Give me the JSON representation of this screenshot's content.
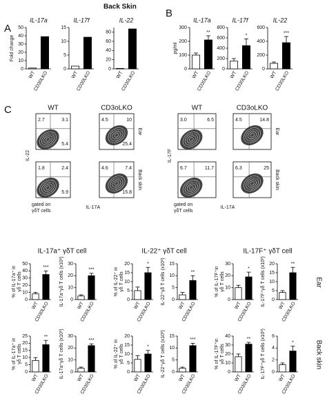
{
  "header": "Back Skin",
  "panels": [
    "A",
    "B",
    "C"
  ],
  "group_titles": [
    "IL-17a⁺ γδT cell",
    "IL-22⁺ γδT cell",
    "IL-17F⁺ γδT cell"
  ],
  "row_labels": [
    "Ear",
    "Back skin"
  ],
  "flow": [
    {
      "ylabel": "IL-22",
      "xlabel": "IL-17A",
      "columns": [
        "WT",
        "CD3oLKO"
      ],
      "rows": [
        "Ear",
        "Back skin"
      ],
      "gate": [
        "gated on",
        "γδT cells"
      ],
      "plots": [
        [
          {
            "UL": 2.7,
            "UR": 3.1,
            "LR": 5.4
          },
          {
            "UL": 4.5,
            "UR": 10,
            "LR": 25.4
          }
        ],
        [
          {
            "UL": 1.8,
            "UR": 2.4,
            "LR": 5.9
          },
          {
            "UL": 4.6,
            "UR": 7.4,
            "LR": 15.8
          }
        ]
      ]
    },
    {
      "ylabel": "IL-17F",
      "xlabel": "IL-17A",
      "columns": [
        "WT",
        "CD3oLKO"
      ],
      "rows": [
        "Ear",
        "Back skin"
      ],
      "gate": [
        "gated on",
        "γδT cells"
      ],
      "plots": [
        [
          {
            "UL": {
              "value": 3,
              "label": "3.0"
            },
            "UR": 6.5
          },
          {
            "UL": 4.5,
            "UR": 14.8
          }
        ],
        [
          {
            "UL": 6.7,
            "UR": 11.7
          },
          {
            "UL": 6.3,
            "UR": 25
          }
        ]
      ]
    }
  ],
  "chart_data": [
    {
      "type": "bar",
      "title": "IL-17a",
      "ylabel": [
        "Fold change"
      ],
      "categories": [
        "WT",
        "CD30LKO"
      ],
      "values": [
        1,
        39
      ],
      "colors": [
        "#ffffff",
        "#000000"
      ],
      "ylim": [
        0,
        50
      ],
      "yticks": [
        0,
        10,
        20,
        30,
        40,
        50
      ]
    },
    {
      "type": "bar",
      "title": "IL-17f",
      "categories": [
        "WT",
        "CD30LKO"
      ],
      "values": [
        1,
        11.5
      ],
      "colors": [
        "#ffffff",
        "#000000"
      ],
      "ylim": [
        0,
        15
      ],
      "yticks": [
        0,
        5,
        10,
        15
      ]
    },
    {
      "type": "bar",
      "title": "IL-22",
      "categories": [
        "WT",
        "CD30LKO"
      ],
      "values": [
        1,
        87
      ],
      "colors": [
        "#ffffff",
        "#000000"
      ],
      "ylim": [
        0,
        90
      ],
      "yticks": [
        0,
        20,
        40,
        60,
        80
      ]
    },
    {
      "type": "bar",
      "title": "IL-17a",
      "ylabel": [
        "pg/ml"
      ],
      "categories": [
        "WT",
        "CD30LKO"
      ],
      "values": [
        100,
        210
      ],
      "errors": [
        15,
        30
      ],
      "annotation": "**",
      "colors": [
        "#ffffff",
        "#000000"
      ],
      "ylim": [
        0,
        300
      ],
      "yticks": [
        0,
        100,
        200,
        300
      ]
    },
    {
      "type": "bar",
      "title": "IL-17f",
      "categories": [
        "WT",
        "CD30LKO"
      ],
      "values": [
        150,
        450
      ],
      "errors": [
        50,
        130
      ],
      "annotation": "*",
      "colors": [
        "#ffffff",
        "#000000"
      ],
      "ylim": [
        0,
        800
      ],
      "yticks": [
        0,
        200,
        400,
        600,
        800
      ]
    },
    {
      "type": "bar",
      "title": "IL-22",
      "categories": [
        "WT",
        "CD30LKO"
      ],
      "values": [
        80,
        380
      ],
      "errors": [
        20,
        90
      ],
      "annotation": "***",
      "colors": [
        "#ffffff",
        "#000000"
      ],
      "ylim": [
        0,
        600
      ],
      "yticks": [
        0,
        200,
        400,
        600
      ]
    },
    {
      "type": "bar",
      "ylabel": [
        "% of IL-17a⁺ in",
        "γδ T cells"
      ],
      "categories": [
        "WT",
        "CD30LKO"
      ],
      "values": [
        8,
        35
      ],
      "errors": [
        2,
        5
      ],
      "annotation": "***",
      "colors": [
        "#ffffff",
        "#000000"
      ],
      "ylim": [
        0,
        50
      ],
      "yticks": [
        0,
        10,
        20,
        30,
        40,
        50
      ]
    },
    {
      "type": "bar",
      "ylabel": [
        "IL-17a⁺γδ T cells (x10³)"
      ],
      "categories": [
        "WT",
        "CD30LKO"
      ],
      "values": [
        3,
        20
      ],
      "errors": [
        1,
        2
      ],
      "annotation": "***",
      "colors": [
        "#ffffff",
        "#000000"
      ],
      "ylim": [
        0,
        30
      ],
      "yticks": [
        0,
        10,
        20,
        30
      ]
    },
    {
      "type": "bar",
      "ylabel": [
        "% of IL-22⁺ in",
        "γδ T cells"
      ],
      "categories": [
        "WT",
        "CD30LKO"
      ],
      "values": [
        5,
        15
      ],
      "errors": [
        2,
        3
      ],
      "annotation": "*",
      "colors": [
        "#ffffff",
        "#000000"
      ],
      "ylim": [
        0,
        20
      ],
      "yticks": [
        0,
        5,
        10,
        15,
        20
      ]
    },
    {
      "type": "bar",
      "ylabel": [
        "IL-22⁺γδ T cells (x10³)"
      ],
      "categories": [
        "WT",
        "CD30LKO"
      ],
      "values": [
        2,
        8
      ],
      "errors": [
        1,
        2
      ],
      "annotation": "**",
      "colors": [
        "#ffffff",
        "#000000"
      ],
      "ylim": [
        0,
        15
      ],
      "yticks": [
        0,
        5,
        10,
        15
      ]
    },
    {
      "type": "bar",
      "ylabel": [
        "% of IL-17F⁺in",
        "γδ T cells"
      ],
      "categories": [
        "WT",
        "CD30LKO"
      ],
      "values": [
        10,
        19
      ],
      "errors": [
        2,
        4
      ],
      "annotation": "*",
      "colors": [
        "#ffffff",
        "#000000"
      ],
      "ylim": [
        0,
        30
      ],
      "yticks": [
        0,
        10,
        20,
        30
      ]
    },
    {
      "type": "bar",
      "ylabel": [
        "IL-17F⁺γδ T cells (x10³)"
      ],
      "categories": [
        "WT",
        "CD30LKO"
      ],
      "values": [
        4,
        15
      ],
      "errors": [
        1,
        3
      ],
      "annotation": "**",
      "colors": [
        "#ffffff",
        "#000000"
      ],
      "ylim": [
        0,
        20
      ],
      "yticks": [
        0,
        5,
        10,
        15,
        20
      ]
    },
    {
      "type": "bar",
      "ylabel": [
        "% of IL-17a⁺ in",
        "γδ T cells"
      ],
      "categories": [
        "WT",
        "CD30LKO"
      ],
      "values": [
        8,
        19
      ],
      "errors": [
        2,
        3
      ],
      "annotation": "**",
      "colors": [
        "#ffffff",
        "#000000"
      ],
      "ylim": [
        0,
        25
      ],
      "yticks": [
        0,
        5,
        10,
        15,
        20,
        25
      ]
    },
    {
      "type": "bar",
      "ylabel": [
        "IL-17a⁺γδ T cells (x10³)"
      ],
      "categories": [
        "WT",
        "CD30LKO"
      ],
      "values": [
        3,
        22
      ],
      "errors": [
        1,
        1.5
      ],
      "annotation": "***",
      "colors": [
        "#ffffff",
        "#000000"
      ],
      "ylim": [
        0,
        30
      ],
      "yticks": [
        0,
        10,
        20,
        30
      ]
    },
    {
      "type": "bar",
      "ylabel": [
        "% of IL-22⁺ in",
        "γδ T cells"
      ],
      "categories": [
        "WT",
        "CD30LKO"
      ],
      "values": [
        7,
        10
      ],
      "errors": [
        2,
        2
      ],
      "annotation": "*",
      "colors": [
        "#ffffff",
        "#000000"
      ],
      "ylim": [
        0,
        20
      ],
      "yticks": [
        0,
        5,
        10,
        15,
        20
      ]
    },
    {
      "type": "bar",
      "ylabel": [
        "IL-22⁺γδ T cells (x10³)"
      ],
      "categories": [
        "WT",
        "CD30LKO"
      ],
      "values": [
        1.5,
        11
      ],
      "errors": [
        0.5,
        1
      ],
      "annotation": "***",
      "colors": [
        "#ffffff",
        "#000000"
      ],
      "ylim": [
        0,
        15
      ],
      "yticks": [
        0,
        5,
        10,
        15
      ]
    },
    {
      "type": "bar",
      "ylabel": [
        "% of IL-17F⁺in",
        "γδ T cells"
      ],
      "categories": [
        "WT",
        "CD30LKO"
      ],
      "values": [
        17,
        31
      ],
      "errors": [
        3,
        2
      ],
      "annotation": "**",
      "colors": [
        "#ffffff",
        "#000000"
      ],
      "ylim": [
        0,
        40
      ],
      "yticks": [
        0,
        10,
        20,
        30,
        40
      ]
    },
    {
      "type": "bar",
      "ylabel": [
        "IL-17F⁺γδ T cells (x10³)"
      ],
      "categories": [
        "WT",
        "CD30LKO"
      ],
      "values": [
        1.2,
        3.5
      ],
      "errors": [
        0.3,
        0.8
      ],
      "annotation": "*",
      "colors": [
        "#ffffff",
        "#000000"
      ],
      "ylim": [
        0,
        6
      ],
      "yticks": [
        0,
        2,
        4,
        6
      ]
    }
  ]
}
